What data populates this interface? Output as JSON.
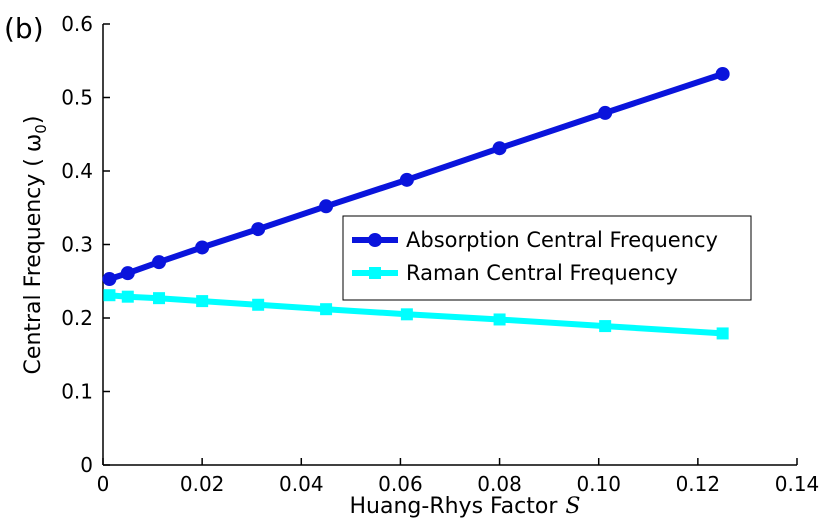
{
  "panel_label": "(b)",
  "chart_data": {
    "type": "line",
    "xlabel": "Huang-Rhys Factor",
    "xlabel_symbol": "S",
    "ylabel": "Central Frequency (",
    "ylabel_symbol": "ω",
    "ylabel_sub": "0",
    "ylabel_close": ")",
    "xlim": [
      0,
      0.14
    ],
    "ylim": [
      0,
      0.6
    ],
    "xticks": [
      0,
      0.02,
      0.04,
      0.06,
      0.08,
      0.1,
      0.12,
      0.14
    ],
    "xtick_labels": [
      "0",
      "0.02",
      "0.04",
      "0.06",
      "0.08",
      "0.10",
      "0.12",
      "0.14"
    ],
    "yticks": [
      0,
      0.1,
      0.2,
      0.3,
      0.4,
      0.5,
      0.6
    ],
    "ytick_labels": [
      "0",
      "0.1",
      "0.2",
      "0.3",
      "0.4",
      "0.5",
      "0.6"
    ],
    "grid": false,
    "legend_position": "center-right",
    "series": [
      {
        "name": "Absorption Central Frequency",
        "color": "#0a14dc",
        "marker": "circle",
        "x": [
          0.0013,
          0.005,
          0.0113,
          0.02,
          0.0313,
          0.045,
          0.0613,
          0.08,
          0.1013,
          0.125
        ],
        "y": [
          0.253,
          0.261,
          0.276,
          0.296,
          0.321,
          0.352,
          0.388,
          0.431,
          0.479,
          0.532
        ]
      },
      {
        "name": "Raman Central Frequency",
        "color": "#00ffff",
        "marker": "square",
        "x": [
          0.0013,
          0.005,
          0.0113,
          0.02,
          0.0313,
          0.045,
          0.0613,
          0.08,
          0.1013,
          0.125
        ],
        "y": [
          0.231,
          0.229,
          0.227,
          0.223,
          0.218,
          0.212,
          0.205,
          0.198,
          0.189,
          0.179
        ]
      }
    ]
  }
}
